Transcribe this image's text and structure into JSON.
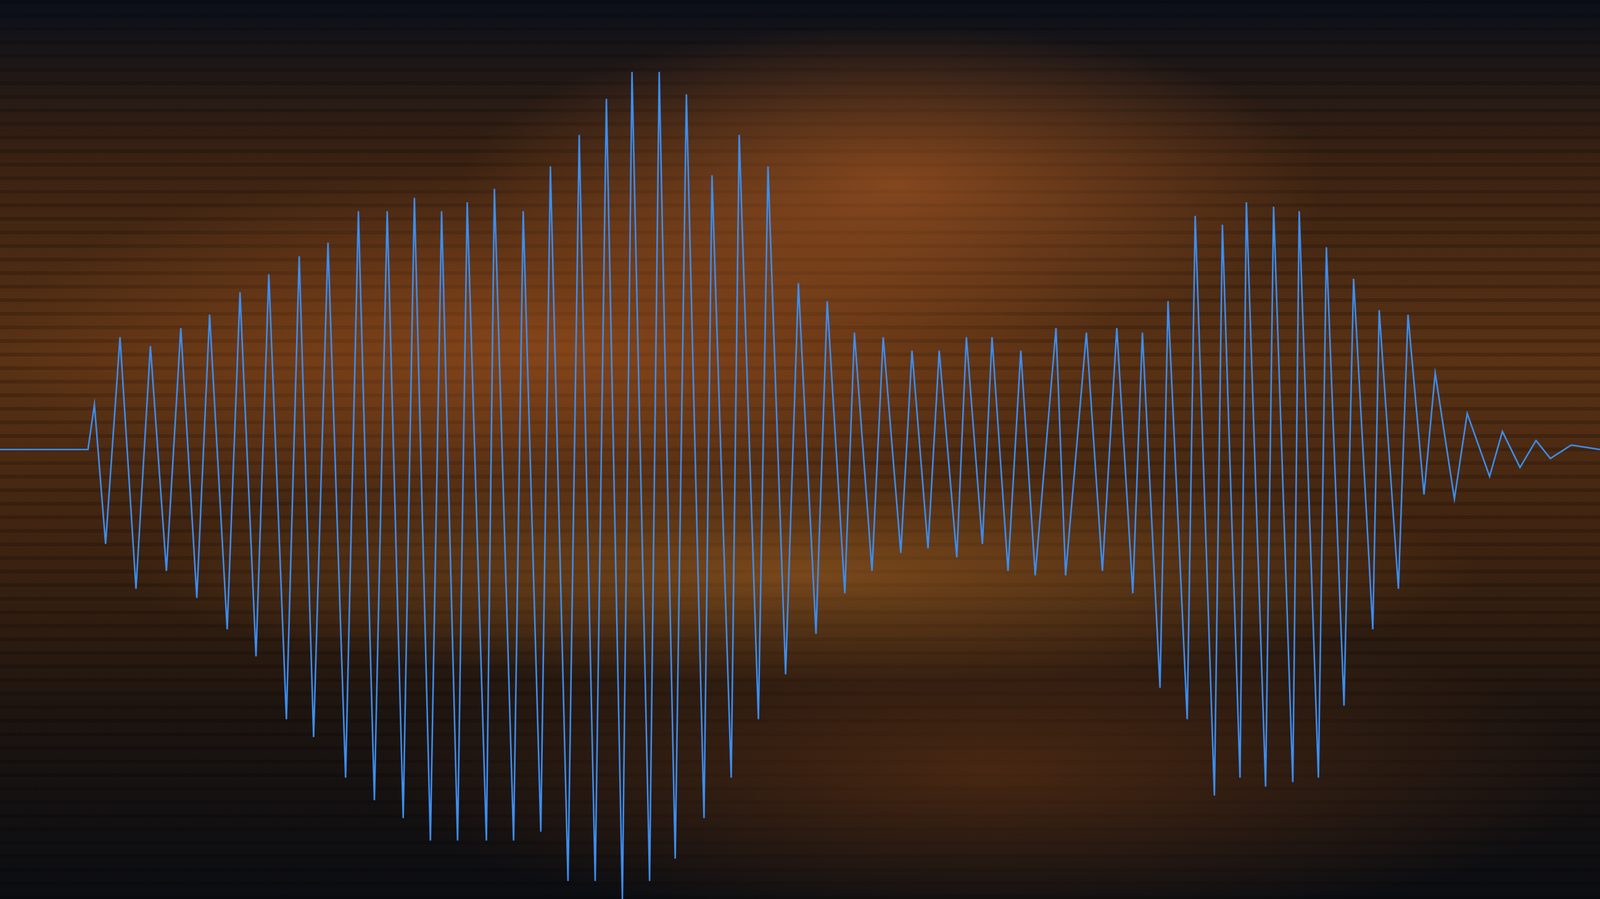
{
  "chart_data": {
    "type": "line",
    "x": [
      0,
      5.1,
      5.5,
      5.9,
      6.6,
      7.5,
      8.5,
      9.4,
      10.4,
      11.3,
      12.3,
      13.1,
      14.2,
      15.0,
      16.0,
      16.8,
      17.9,
      18.7,
      19.6,
      20.5,
      21.6,
      22.4,
      23.4,
      24.2,
      25.2,
      25.9,
      26.9,
      27.6,
      28.6,
      29.2,
      30.4,
      30.9,
      32.1,
      32.7,
      33.8,
      34.4,
      35.5,
      36.2,
      37.2,
      37.9,
      38.9,
      39.5,
      40.6,
      41.2,
      42.2,
      42.9,
      44.0,
      44.5,
      45.7,
      46.2,
      47.4,
      48.0,
      49.1,
      49.9,
      51.0,
      51.7,
      52.8,
      53.4,
      54.5,
      55.2,
      56.3,
      57.0,
      58.0,
      58.7,
      59.8,
      60.4,
      61.4,
      62.0,
      63.0,
      63.8,
      64.7,
      66.0,
      66.6,
      67.9,
      68.9,
      69.8,
      70.8,
      71.4,
      72.5,
      73.0,
      74.2,
      74.7,
      75.9,
      76.4,
      77.5,
      77.9,
      79.1,
      79.6,
      80.8,
      81.2,
      82.4,
      82.9,
      84.0,
      84.6,
      85.8,
      86.2,
      87.4,
      88.0,
      89.0,
      89.7,
      90.9,
      91.7,
      93.1,
      93.9,
      95.0,
      96.0,
      96.9,
      98.2,
      100
    ],
    "values": [
      0,
      0,
      0,
      0.1,
      -0.21,
      0.25,
      -0.31,
      0.23,
      -0.27,
      0.27,
      -0.33,
      0.3,
      -0.4,
      0.35,
      -0.46,
      0.39,
      -0.6,
      0.43,
      -0.64,
      0.46,
      -0.73,
      0.53,
      -0.78,
      0.53,
      -0.82,
      0.56,
      -0.87,
      0.53,
      -0.87,
      0.55,
      -0.87,
      0.58,
      -0.87,
      0.53,
      -0.85,
      0.63,
      -0.96,
      0.7,
      -0.96,
      0.78,
      -1.0,
      0.84,
      -0.96,
      0.84,
      -0.91,
      0.79,
      -0.82,
      0.61,
      -0.73,
      0.7,
      -0.6,
      0.63,
      -0.5,
      0.37,
      -0.41,
      0.33,
      -0.32,
      0.26,
      -0.27,
      0.25,
      -0.23,
      0.22,
      -0.22,
      0.22,
      -0.24,
      0.25,
      -0.21,
      0.25,
      -0.27,
      0.22,
      -0.28,
      0.27,
      -0.28,
      0.26,
      -0.27,
      0.27,
      -0.32,
      0.26,
      -0.53,
      0.33,
      -0.6,
      0.52,
      -0.77,
      0.5,
      -0.73,
      0.55,
      -0.75,
      0.54,
      -0.74,
      0.53,
      -0.73,
      0.45,
      -0.57,
      0.38,
      -0.4,
      0.31,
      -0.31,
      0.3,
      -0.1,
      0.17,
      -0.11,
      0.08,
      -0.06,
      0.04,
      -0.04,
      0.02,
      -0.02,
      0.01,
      0
    ],
    "color": "#3d8ef0",
    "xlim": [
      0,
      100
    ],
    "ylim": [
      -1,
      1
    ],
    "grid": false,
    "tick_labels": false
  }
}
